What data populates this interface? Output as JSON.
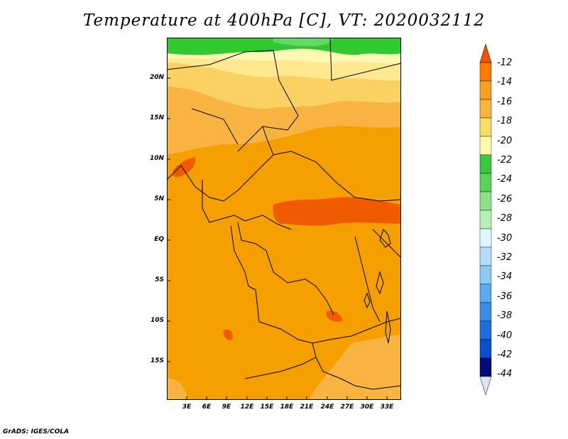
{
  "title": "Temperature at 400hPa [C], VT: 2020032112",
  "credit": "GrADS: IGES/COLA",
  "map": {
    "type": "filled-contour-map",
    "region": "Central Africa",
    "lat_ticks": [
      "20N",
      "15N",
      "10N",
      "5N",
      "EQ",
      "5S",
      "10S",
      "15S"
    ],
    "lon_ticks": [
      "3E",
      "6E",
      "9E",
      "12E",
      "15E",
      "18E",
      "21E",
      "24E",
      "27E",
      "30E",
      "33E"
    ],
    "lat_range": [
      -20,
      25
    ],
    "lon_range": [
      0,
      35
    ],
    "dominant_value_range": "-14 to -16"
  },
  "colorbar": {
    "labels": [
      "-12",
      "-14",
      "-16",
      "-18",
      "-20",
      "-22",
      "-24",
      "-26",
      "-28",
      "-30",
      "-32",
      "-34",
      "-36",
      "-38",
      "-40",
      "-42",
      "-44"
    ],
    "colors": [
      "#ff7800",
      "#f5a01e",
      "#f8b240",
      "#fadc64",
      "#fffaaa",
      "#3cc83c",
      "#5ad25a",
      "#8ce18c",
      "#b4f0b4",
      "#dcf5ff",
      "#b4dcfa",
      "#8cc8f5",
      "#5aaaf0",
      "#3c8ce6",
      "#1e6edc",
      "#0a50c8",
      "#000a78"
    ],
    "top_color": "#f05000",
    "bottom_color": "#e0e0ff"
  },
  "palette": {
    "c12": "#f05a00",
    "c14": "#f5a000",
    "c16": "#f8b440",
    "c18": "#fad264",
    "c20": "#ffe890",
    "c22": "#fff8b4",
    "c24": "#32c832",
    "c26": "#64d764"
  }
}
